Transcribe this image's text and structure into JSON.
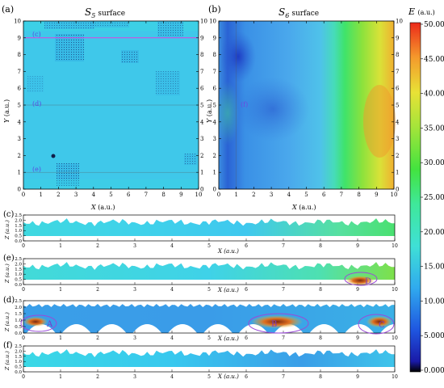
{
  "figure": {
    "panel_a": {
      "label": "(a)",
      "title_main": "S",
      "title_sub": "5",
      "title_suffix": "surface",
      "xlabel_var": "X",
      "xlabel_unit": "(a.u.)",
      "ylabel_var": "Y",
      "ylabel_unit": "(a.u.)",
      "annotations": [
        "(c)",
        "(d)",
        "(e)"
      ]
    },
    "panel_b": {
      "label": "(b)",
      "title_main": "S",
      "title_sub": "6",
      "title_suffix": "surface",
      "xlabel_var": "X",
      "xlabel_unit": "(a.u.)",
      "ylabel_var": "Y",
      "ylabel_unit": "(a.u.)",
      "annotations": [
        "(f)"
      ]
    },
    "strips": [
      {
        "label": "(c)",
        "ylabel": "Z (a.u.)",
        "xlabel": "X (a.u.)",
        "markers": []
      },
      {
        "label": "(e)",
        "ylabel": "Z (a.u.)",
        "xlabel": "X (a.u.)",
        "markers": [
          "D"
        ]
      },
      {
        "label": "(d)",
        "ylabel": "Z (a.u.)",
        "xlabel": "X (a.u.)",
        "markers": [
          "A",
          "B",
          "C"
        ]
      },
      {
        "label": "(f)",
        "ylabel": "Z (a.u.)",
        "xlabel": "X (a.u.)",
        "markers": []
      }
    ],
    "colorbar": {
      "label_var": "E",
      "label_unit": "(a.u.)",
      "ticks": [
        "50.00",
        "45.00",
        "40.00",
        "35.00",
        "30.00",
        "25.00",
        "20.00",
        "15.00",
        "10.00",
        "5.000",
        "0.000"
      ]
    }
  },
  "chart_data": [
    {
      "type": "heatmap",
      "panel": "(a)",
      "title": "S5 surface",
      "xlabel": "X (a.u.)",
      "ylabel": "Y (a.u.)",
      "xlim": [
        0,
        10
      ],
      "ylim": [
        0,
        10
      ],
      "x_ticks": [
        0,
        1,
        2,
        3,
        4,
        5,
        6,
        7,
        8,
        9,
        10
      ],
      "y_ticks": [
        0,
        1,
        2,
        3,
        4,
        5,
        6,
        7,
        8,
        9,
        10
      ],
      "section_lines_y": {
        "(c)": 9,
        "(d)": 5,
        "(e)": 1
      },
      "dominant_E": 12
    },
    {
      "type": "heatmap",
      "panel": "(b)",
      "title": "S6 surface",
      "xlabel": "X (a.u.)",
      "ylabel": "Y (a.u.)",
      "xlim": [
        0,
        10
      ],
      "ylim": [
        0,
        10
      ],
      "x_ticks": [
        0,
        1,
        2,
        3,
        4,
        5,
        6,
        7,
        8,
        9,
        10
      ],
      "y_ticks": [
        0,
        1,
        2,
        3,
        4,
        5,
        6,
        7,
        8,
        9,
        10
      ],
      "section_lines_x": {
        "(f)": 1
      },
      "E_range_left_to_right": [
        10,
        40
      ]
    },
    {
      "type": "area",
      "panel": "(c)",
      "xlabel": "X (a.u.)",
      "ylabel": "Z (a.u.)",
      "xlim": [
        0,
        10
      ],
      "ylim": [
        0,
        2.5
      ],
      "y_ticks": [
        0.0,
        0.5,
        1.0,
        1.5,
        2.0,
        2.5
      ]
    },
    {
      "type": "area",
      "panel": "(e)",
      "xlabel": "X (a.u.)",
      "ylabel": "Z (a.u.)",
      "xlim": [
        0,
        10
      ],
      "ylim": [
        0,
        2.5
      ],
      "y_ticks": [
        0.0,
        0.5,
        1.0,
        1.5,
        2.0,
        2.5
      ],
      "highlight": {
        "D": [
          9,
          10
        ]
      }
    },
    {
      "type": "area",
      "panel": "(d)",
      "xlabel": "X (a.u.)",
      "ylabel": "Z (a.u.)",
      "xlim": [
        0,
        10
      ],
      "ylim": [
        0,
        2.5
      ],
      "y_ticks": [
        0.0,
        0.5,
        1.0,
        1.5,
        2.0,
        2.5
      ],
      "highlight": {
        "A": [
          0,
          1
        ],
        "B": [
          6,
          8
        ],
        "C": [
          9,
          10
        ]
      }
    },
    {
      "type": "area",
      "panel": "(f)",
      "xlabel": "X (a.u.)",
      "ylabel": "Z (a.u.)",
      "xlim": [
        0,
        10
      ],
      "ylim": [
        0,
        2.5
      ],
      "y_ticks": [
        0.0,
        0.5,
        1.0,
        1.5,
        2.0,
        2.5
      ]
    }
  ]
}
